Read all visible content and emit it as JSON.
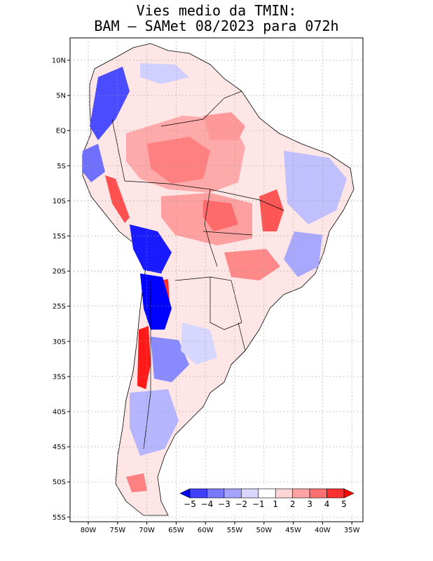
{
  "title": {
    "line1": "Vies medio da TMIN:",
    "line2": "BAM – SAMet 08/2023  para 072h"
  },
  "lat_labels": [
    "10N",
    "5N",
    "EQ",
    "5S",
    "10S",
    "15S",
    "20S",
    "25S",
    "30S",
    "35S",
    "40S",
    "45S",
    "50S",
    "55S"
  ],
  "lon_labels": [
    "80W",
    "75W",
    "70W",
    "65W",
    "60W",
    "55W",
    "50W",
    "45W",
    "40W",
    "35W"
  ],
  "colorbar": {
    "labels": [
      "−5",
      "−4",
      "−3",
      "−2",
      "−1",
      "1",
      "2",
      "3",
      "4",
      "5"
    ],
    "colors": [
      "#0000ff",
      "#4040ff",
      "#7777ff",
      "#a3a3ff",
      "#d6d6ff",
      "#ffffff",
      "#ffd6d6",
      "#ffa3a3",
      "#ff7070",
      "#ff3030",
      "#ff0000"
    ]
  },
  "colors": {
    "grid": "#9a9a9a",
    "border": "#000000",
    "land_neutral": "#ffffff"
  }
}
